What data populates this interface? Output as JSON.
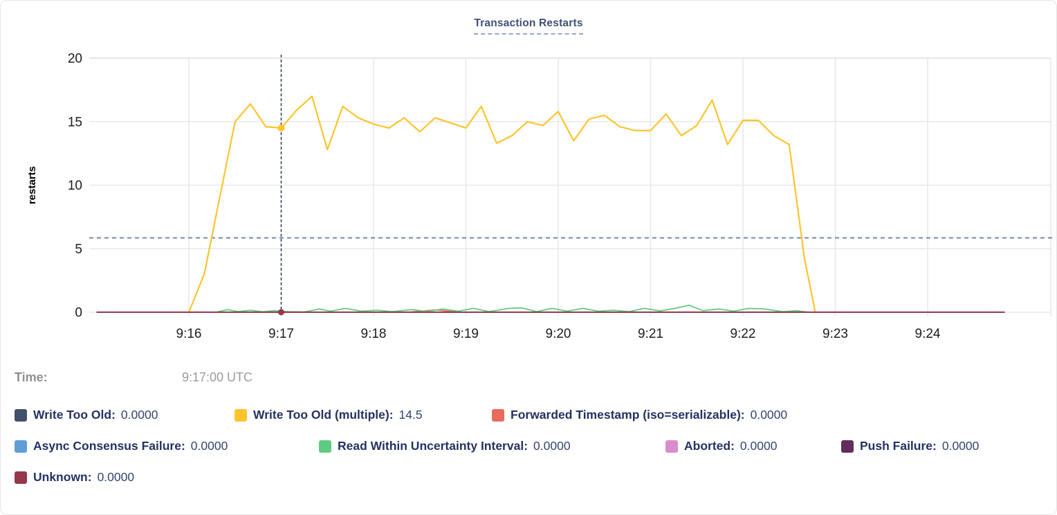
{
  "title": "Transaction Restarts",
  "time_label": "Time:",
  "time_value": "9:17:00 UTC",
  "chart_data": {
    "type": "line",
    "title": "Transaction Restarts",
    "xlabel": "",
    "ylabel": "restarts",
    "ylim": [
      0,
      20
    ],
    "y_ticks": [
      0,
      5,
      10,
      15,
      20
    ],
    "x_ticks": [
      {
        "label": "9:16",
        "t": 60
      },
      {
        "label": "9:17",
        "t": 120
      },
      {
        "label": "9:18",
        "t": 180
      },
      {
        "label": "9:19",
        "t": 240
      },
      {
        "label": "9:20",
        "t": 300
      },
      {
        "label": "9:21",
        "t": 360
      },
      {
        "label": "9:22",
        "t": 420
      },
      {
        "label": "9:23",
        "t": 480
      },
      {
        "label": "9:24",
        "t": 540
      }
    ],
    "time_origin": "9:15:00",
    "time_unit": "seconds since 9:15:00",
    "grid": true,
    "legend_position": "bottom",
    "reference_line_y": 5.85,
    "crosshair": {
      "time": "9:17:00 UTC",
      "t": 120,
      "highlight": [
        {
          "series": "Write Too Old (multiple)",
          "value": 14.5
        },
        {
          "series": "Unknown",
          "value": 0
        }
      ]
    },
    "series": [
      {
        "name": "Write Too Old",
        "slug": "write-too-old",
        "color": "#41506b",
        "value_at_cursor": "0.0000",
        "points": [
          [
            0,
            0
          ],
          [
            590,
            0
          ]
        ]
      },
      {
        "name": "Write Too Old (multiple)",
        "slug": "write-too-old-multiple",
        "color": "#fdc42c",
        "value_at_cursor": "14.5",
        "points": [
          [
            60,
            0
          ],
          [
            70,
            3
          ],
          [
            80,
            9
          ],
          [
            90,
            15
          ],
          [
            100,
            16.4
          ],
          [
            110,
            14.6
          ],
          [
            120,
            14.5
          ],
          [
            130,
            15.9
          ],
          [
            140,
            17
          ],
          [
            150,
            12.8
          ],
          [
            160,
            16.2
          ],
          [
            170,
            15.3
          ],
          [
            180,
            14.8
          ],
          [
            190,
            14.5
          ],
          [
            200,
            15.3
          ],
          [
            210,
            14.2
          ],
          [
            220,
            15.3
          ],
          [
            230,
            14.9
          ],
          [
            240,
            14.5
          ],
          [
            250,
            16.2
          ],
          [
            260,
            13.3
          ],
          [
            270,
            13.9
          ],
          [
            280,
            15
          ],
          [
            290,
            14.7
          ],
          [
            300,
            15.8
          ],
          [
            310,
            13.5
          ],
          [
            320,
            15.2
          ],
          [
            330,
            15.5
          ],
          [
            340,
            14.6
          ],
          [
            350,
            14.3
          ],
          [
            360,
            14.3
          ],
          [
            370,
            15.6
          ],
          [
            380,
            13.9
          ],
          [
            390,
            14.7
          ],
          [
            400,
            16.7
          ],
          [
            410,
            13.2
          ],
          [
            420,
            15.1
          ],
          [
            430,
            15.1
          ],
          [
            440,
            13.9
          ],
          [
            450,
            13.2
          ],
          [
            460,
            4.2
          ],
          [
            467,
            0
          ]
        ]
      },
      {
        "name": "Forwarded Timestamp (iso=serializable)",
        "slug": "forwarded-timestamp",
        "color": "#ea6a5d",
        "value_at_cursor": "0.0000",
        "points": [
          [
            0,
            0
          ],
          [
            203,
            0
          ],
          [
            213,
            0.1
          ],
          [
            221,
            0.18
          ],
          [
            229,
            0.08
          ],
          [
            237,
            0
          ],
          [
            590,
            0
          ]
        ]
      },
      {
        "name": "Async Consensus Failure",
        "slug": "async-consensus-failure",
        "color": "#5f9ed7",
        "value_at_cursor": "0.0000",
        "points": [
          [
            0,
            0
          ],
          [
            590,
            0
          ]
        ]
      },
      {
        "name": "Read Within Uncertainty Interval",
        "slug": "read-within-uncertainty-interval",
        "color": "#5ecb82",
        "value_at_cursor": "0.0000",
        "points": [
          [
            78,
            0
          ],
          [
            85,
            0.2
          ],
          [
            92,
            0.05
          ],
          [
            100,
            0.15
          ],
          [
            108,
            0.03
          ],
          [
            115,
            0.12
          ],
          [
            125,
            0.04
          ],
          [
            135,
            0.02
          ],
          [
            145,
            0.25
          ],
          [
            152,
            0.08
          ],
          [
            162,
            0.3
          ],
          [
            172,
            0.08
          ],
          [
            182,
            0.15
          ],
          [
            192,
            0.05
          ],
          [
            205,
            0.2
          ],
          [
            215,
            0.05
          ],
          [
            225,
            0.25
          ],
          [
            235,
            0.08
          ],
          [
            245,
            0.3
          ],
          [
            255,
            0.05
          ],
          [
            268,
            0.3
          ],
          [
            276,
            0.35
          ],
          [
            286,
            0.05
          ],
          [
            296,
            0.3
          ],
          [
            306,
            0.08
          ],
          [
            316,
            0.3
          ],
          [
            326,
            0.08
          ],
          [
            336,
            0.15
          ],
          [
            346,
            0.05
          ],
          [
            356,
            0.3
          ],
          [
            366,
            0.1
          ],
          [
            376,
            0.3
          ],
          [
            385,
            0.55
          ],
          [
            394,
            0.12
          ],
          [
            404,
            0.25
          ],
          [
            414,
            0.08
          ],
          [
            424,
            0.3
          ],
          [
            434,
            0.25
          ],
          [
            446,
            0.04
          ],
          [
            455,
            0.12
          ],
          [
            462,
            0
          ]
        ]
      },
      {
        "name": "Aborted",
        "slug": "aborted",
        "color": "#d98bcd",
        "value_at_cursor": "0.0000",
        "points": [
          [
            0,
            0
          ],
          [
            590,
            0
          ]
        ]
      },
      {
        "name": "Push Failure",
        "slug": "push-failure",
        "color": "#632c5c",
        "value_at_cursor": "0.0000",
        "points": [
          [
            0,
            0
          ],
          [
            590,
            0
          ]
        ]
      },
      {
        "name": "Unknown",
        "slug": "unknown",
        "color": "#96374a",
        "value_at_cursor": "0.0000",
        "points": [
          [
            0,
            0
          ],
          [
            590,
            0
          ]
        ]
      }
    ]
  }
}
